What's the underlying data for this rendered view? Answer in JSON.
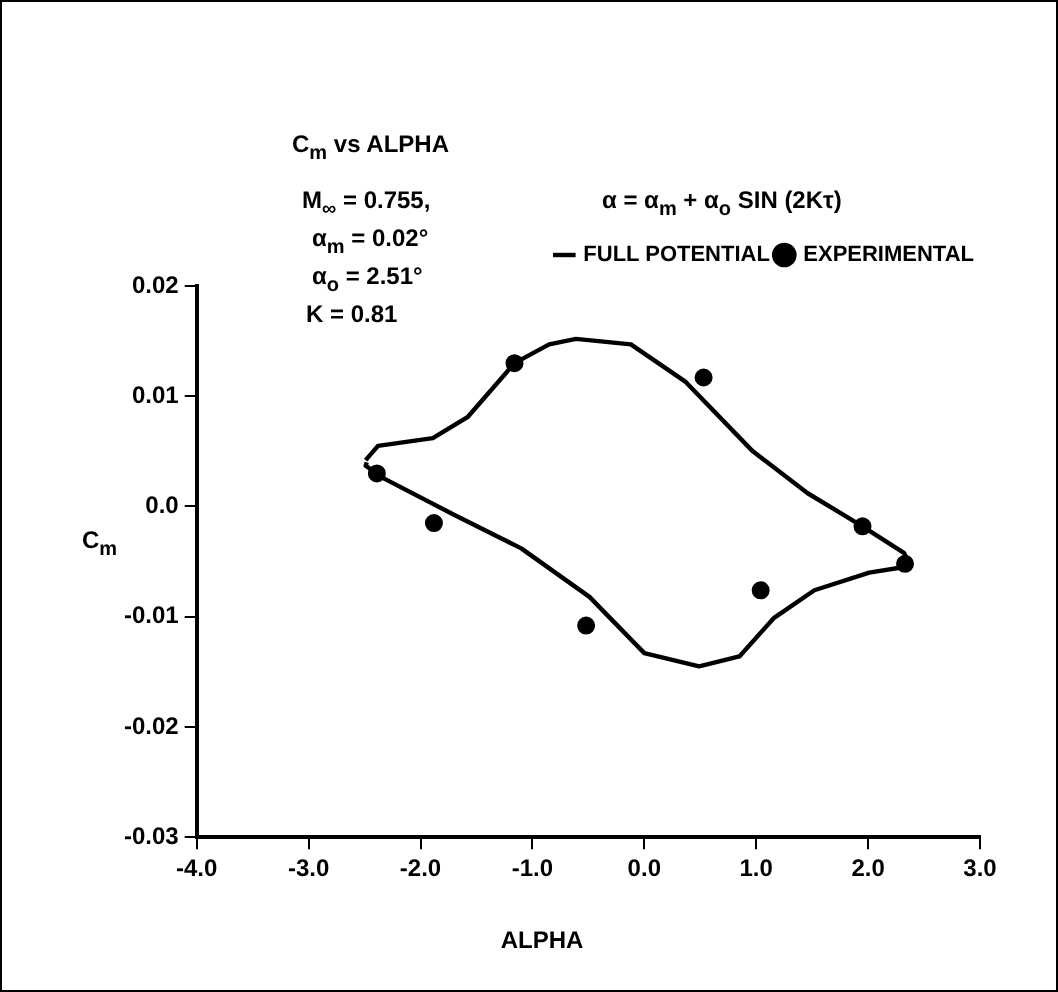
{
  "chart_data": {
    "type": "scatter",
    "title": "C$_{m}$ vs ALPHA",
    "xlabel": "ALPHA",
    "ylabel": "C$_{m}$",
    "annotations": [
      "M$_{∞}$ = 0.755,",
      "α$_{m}$ = 0.02°",
      "α$_{o}$ = 2.51°",
      "K = 0.81",
      "α = α$_{m}$ + α$_{o}$ SIN (2Kτ)"
    ],
    "xlim": [
      -4,
      3
    ],
    "ylim": [
      -0.03,
      0.02
    ],
    "xticks": [
      {
        "value": -4,
        "label": "-4.0"
      },
      {
        "value": -3,
        "label": "-3.0"
      },
      {
        "value": -2,
        "label": "-2.0"
      },
      {
        "value": -1,
        "label": "-1.0"
      },
      {
        "value": 0,
        "label": "0.0"
      },
      {
        "value": 1,
        "label": "1.0"
      },
      {
        "value": 2,
        "label": "2.0"
      },
      {
        "value": 3,
        "label": "3.0"
      }
    ],
    "yticks": [
      -0.03,
      -0.02,
      -0.01,
      {
        "value": 0,
        "label": "0.0"
      },
      0.01,
      0.02
    ],
    "grid": false,
    "legend": "top right",
    "series": [
      {
        "name": "FULL POTENTIAL",
        "type": "line",
        "color": "#000000",
        "marker": "none",
        "line_style": "solid",
        "x": [
          -2.49,
          -2.38,
          -1.89,
          -1.58,
          -1.16,
          -0.85,
          -0.61,
          -0.12,
          0.37,
          0.97,
          1.46,
          1.95,
          2.32,
          2.38,
          2.01,
          1.52,
          1.16,
          0.85,
          0.49,
          0.0,
          -0.49,
          -1.1,
          -1.71,
          -2.32,
          -2.49,
          -2.48
        ],
        "values": [
          0.0042,
          0.0055,
          0.0062,
          0.0081,
          0.013,
          0.0147,
          0.0152,
          0.0147,
          0.0113,
          0.005,
          0.0012,
          -0.0018,
          -0.0042,
          -0.0054,
          -0.006,
          -0.0076,
          -0.0101,
          -0.0136,
          -0.0145,
          -0.0133,
          -0.0082,
          -0.0038,
          -0.0007,
          0.0025,
          0.0037,
          0.004
        ]
      },
      {
        "name": "EXPERIMENTAL",
        "type": "scatter",
        "color": "#000000",
        "marker": "circle",
        "x": [
          -2.39,
          -1.88,
          -1.16,
          -0.52,
          0.53,
          1.04,
          1.95,
          2.33
        ],
        "values": [
          0.003,
          -0.0015,
          0.013,
          -0.0108,
          0.0117,
          -0.0076,
          -0.0018,
          -0.0052
        ]
      }
    ]
  }
}
